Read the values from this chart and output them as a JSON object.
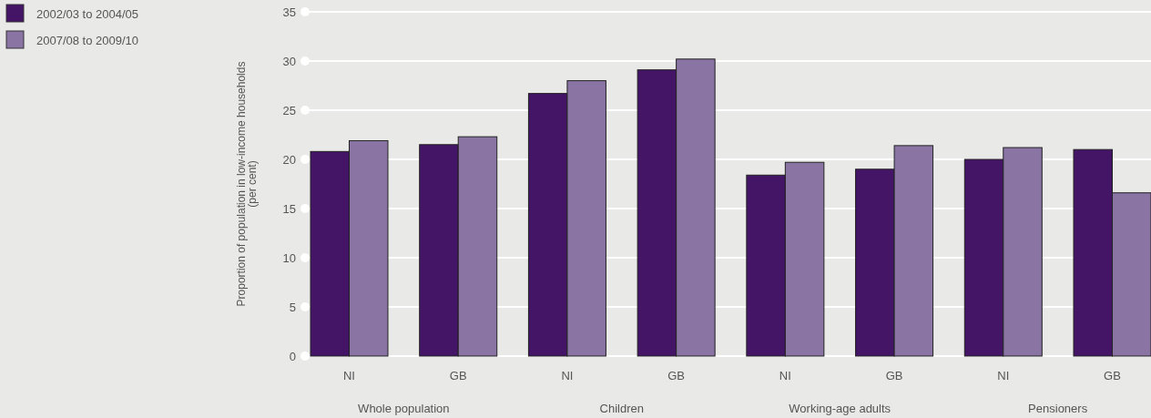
{
  "chart_data": {
    "type": "bar",
    "ylabel": "Proportion of population in low-income households\n(per cent)",
    "categories": [
      "NI",
      "GB",
      "NI",
      "GB",
      "NI",
      "GB",
      "NI",
      "GB"
    ],
    "series": [
      {
        "name": "2002/03 to 2004/05",
        "color": "#441466",
        "values": [
          20.8,
          21.5,
          26.7,
          29.1,
          18.4,
          19.0,
          20.0,
          21.0
        ]
      },
      {
        "name": "2007/08 to 2009/10",
        "color": "#8a74a3",
        "values": [
          21.9,
          22.3,
          28.0,
          30.2,
          19.7,
          21.4,
          21.2,
          16.6
        ]
      }
    ],
    "ylim": [
      0,
      35
    ],
    "yticks": [
      0,
      5,
      10,
      15,
      20,
      25,
      30,
      35
    ],
    "grid": "y",
    "legend": "top left",
    "annotations": [
      "Whole population",
      "Children",
      "Working-age adults",
      "Pensioners"
    ]
  }
}
